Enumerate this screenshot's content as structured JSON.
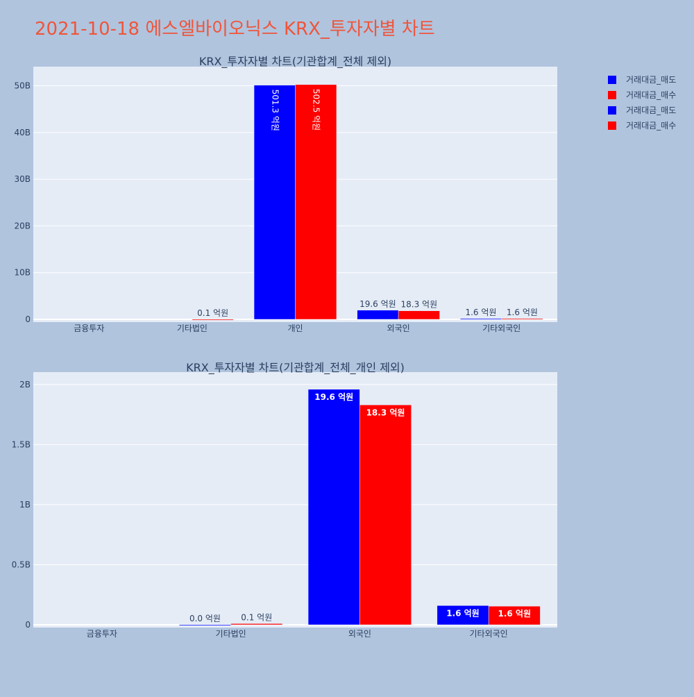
{
  "page": {
    "title": "2021-10-18 에스엘바이오닉스 KRX_투자자별 차트",
    "title_color": "#ef553b",
    "background": "#b0c4de",
    "plot_background": "#e5ecf6"
  },
  "legend": {
    "placement": "top-right",
    "items": [
      {
        "name": "거래대금_매도",
        "color": "#0000ff"
      },
      {
        "name": "거래대금_매수",
        "color": "#ff0000"
      },
      {
        "name": "거래대금_매도",
        "color": "#0000ff"
      },
      {
        "name": "거래대금_매수",
        "color": "#ff0000"
      }
    ]
  },
  "chart_data": [
    {
      "type": "bar",
      "title": "KRX_투자자별 차트(기관합계_전체 제외)",
      "categories": [
        "금융투자",
        "기타법인",
        "개인",
        "외국인",
        "기타외국인"
      ],
      "ylim": [
        0,
        53.5
      ],
      "yticks": [
        0,
        10,
        20,
        30,
        40,
        50
      ],
      "ytick_labels": [
        "0",
        "10B",
        "20B",
        "30B",
        "40B",
        "50B"
      ],
      "grid": true,
      "label_style": "auto",
      "series": [
        {
          "name": "거래대금_매도",
          "color": "#0000ff",
          "values": [
            0,
            0,
            50.13,
            1.96,
            0.16
          ],
          "labels": [
            "",
            "",
            "501.3 억원",
            "19.6 억원",
            "1.6 억원"
          ]
        },
        {
          "name": "거래대금_매수",
          "color": "#ff0000",
          "values": [
            0,
            0.01,
            50.25,
            1.83,
            0.16
          ],
          "labels": [
            "",
            "0.1 억원",
            "502.5 억원",
            "18.3 억원",
            "1.6 억원"
          ]
        }
      ]
    },
    {
      "type": "bar",
      "title": "KRX_투자자별 차트(기관합계_전체_개인 제외)",
      "categories": [
        "금융투자",
        "기타법인",
        "외국인",
        "기타외국인"
      ],
      "ylim": [
        0,
        2.08
      ],
      "yticks": [
        0,
        0.5,
        1,
        1.5,
        2
      ],
      "ytick_labels": [
        "0",
        "0.5B",
        "1B",
        "1.5B",
        "2B"
      ],
      "grid": true,
      "label_style": "inside",
      "series": [
        {
          "name": "거래대금_매도",
          "color": "#0000ff",
          "values": [
            0,
            0.001,
            1.96,
            0.16
          ],
          "labels": [
            "",
            "0.0 억원",
            "19.6 억원",
            "1.6 억원"
          ]
        },
        {
          "name": "거래대금_매수",
          "color": "#ff0000",
          "values": [
            0,
            0.01,
            1.83,
            0.155
          ],
          "labels": [
            "",
            "0.1 억원",
            "18.3 억원",
            "1.6 억원"
          ]
        }
      ]
    }
  ]
}
